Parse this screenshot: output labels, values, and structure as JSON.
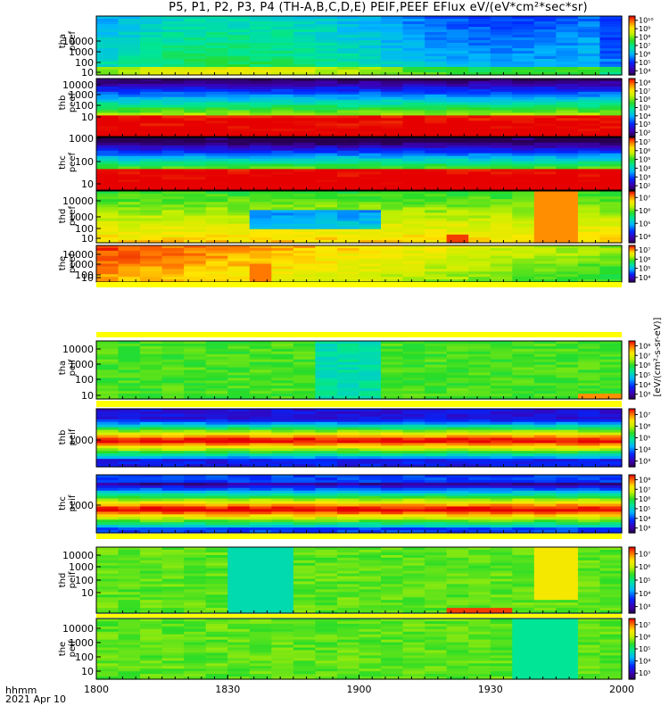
{
  "figure": {
    "title": "P5, P1, P2, P3, P4 (TH-A,B,C,D,E) PEIF,PEEF EFlux eV/(eV*cm²*sec*sr)",
    "time_axis_label": "hhmm",
    "date_label": "2021 Apr 10",
    "colorbar_unit_label": "[eV/(cm²-s-sr-eV)]"
  },
  "chart_data": [
    {
      "type": "heatmap",
      "panel": "tha peef",
      "ylabel": [
        "tha",
        "peef"
      ],
      "y_scale": "log",
      "ylim": [
        7,
        30000
      ],
      "yticks": [
        "10",
        "100",
        "1000",
        "10000"
      ],
      "x_range": [
        "1800",
        "2000"
      ],
      "xticks": [
        "1800",
        "1830",
        "1900",
        "1930",
        "2000"
      ],
      "colorbar_ticks": [
        "10⁴",
        "10⁵",
        "10⁶",
        "10⁷",
        "10⁸",
        "10⁹",
        "10¹⁰"
      ],
      "z_description": "energy flux, mostly 1e4-1e6 (blue-cyan) with green low-energy band",
      "colormap": "rainbow"
    },
    {
      "type": "heatmap",
      "panel": "thb peef",
      "ylabel": [
        "thb",
        "peef"
      ],
      "y_scale": "log",
      "ylim": [
        7,
        15000
      ],
      "yticks": [
        "10",
        "100",
        "1000",
        "10000"
      ],
      "colorbar_ticks": [
        "10²",
        "10³",
        "10⁴",
        "10⁵",
        "10⁶",
        "10⁷",
        "10⁸"
      ],
      "z_description": "horizontal bands: red near 10 eV fading to blue above 1 keV",
      "colormap": "rainbow"
    },
    {
      "type": "heatmap",
      "panel": "thc peef",
      "ylabel": [
        "thc",
        "peef"
      ],
      "y_scale": "log",
      "ylim": [
        7,
        4000
      ],
      "yticks": [
        "10",
        "100",
        "1000"
      ],
      "colorbar_ticks": [
        "10²",
        "10³",
        "10⁴",
        "10⁵",
        "10⁶",
        "10⁷"
      ],
      "z_description": "horizontal bands: red at low energy, blue/black above ~1 keV",
      "colormap": "rainbow"
    },
    {
      "type": "heatmap",
      "panel": "thd peef",
      "ylabel": [
        "thd",
        "peef"
      ],
      "y_scale": "log",
      "ylim": [
        7,
        30000
      ],
      "yticks": [
        "10",
        "100",
        "1000",
        "10000"
      ],
      "colorbar_ticks": [
        "10⁴",
        "10⁵",
        "10⁶",
        "10⁷"
      ],
      "z_description": "yellow-orange flux, cyan dip near 1845-1900, red low-energy near 1920-1930 and 1940-1950",
      "colormap": "rainbow"
    },
    {
      "type": "heatmap",
      "panel": "the peef",
      "ylabel": [
        "the",
        "peef"
      ],
      "y_scale": "log",
      "ylim": [
        7,
        30000
      ],
      "yticks": [
        "10",
        "100",
        "1000",
        "10000"
      ],
      "colorbar_ticks": [
        "10⁴",
        "10⁵",
        "10⁶",
        "10⁷"
      ],
      "z_description": "yellow-orange flux early, green-cyan later",
      "colormap": "rainbow"
    },
    {
      "type": "heatmap",
      "panel": "tha peif",
      "ylabel": [
        "tha",
        "peif"
      ],
      "y_scale": "log",
      "ylim": [
        5,
        30000
      ],
      "yticks": [
        "10",
        "100",
        "1000",
        "10000"
      ],
      "colorbar_ticks": [
        "10³",
        "10⁴",
        "10⁵",
        "10⁶",
        "10⁷",
        "10⁸"
      ],
      "z_description": "mostly green, cyan column near 1855-1905, orange low-energy at end",
      "colormap": "rainbow"
    },
    {
      "type": "heatmap",
      "panel": "thb peif",
      "ylabel": [
        "thb",
        "peif"
      ],
      "y_scale": "log",
      "ylim": [
        100,
        10000
      ],
      "yticks": [
        "1000"
      ],
      "colorbar_ticks": [
        "10³",
        "10⁴",
        "10⁵",
        "10⁶",
        "10⁷"
      ],
      "z_description": "banded: red band slightly below 1 keV, blue above and below",
      "colormap": "rainbow"
    },
    {
      "type": "heatmap",
      "panel": "thc peif",
      "ylabel": [
        "thc",
        "peif"
      ],
      "y_scale": "log",
      "ylim": [
        100,
        10000
      ],
      "yticks": [
        "1000"
      ],
      "colorbar_ticks": [
        "10³",
        "10⁴",
        "10⁵",
        "10⁶",
        "10⁷",
        "10⁸"
      ],
      "z_description": "banded: red band near 700 eV, blue at bottom and top",
      "colormap": "rainbow"
    },
    {
      "type": "heatmap",
      "panel": "thd peif",
      "ylabel": [
        "thd",
        "peif"
      ],
      "y_scale": "log",
      "ylim": [
        7,
        30000
      ],
      "yticks": [
        "10",
        "100",
        "1000",
        "10000"
      ],
      "colorbar_ticks": [
        "10³",
        "10⁴",
        "10⁵",
        "10⁶",
        "10⁷"
      ],
      "z_description": "green, cyan column near 1830-1845, yellow block near 1945-1955",
      "colormap": "rainbow"
    },
    {
      "type": "heatmap",
      "panel": "the peif",
      "ylabel": [
        "the",
        "peif"
      ],
      "y_scale": "log",
      "ylim": [
        7,
        30000
      ],
      "yticks": [
        "10",
        "100",
        "1000",
        "10000"
      ],
      "colorbar_ticks": [
        "10³",
        "10⁴",
        "10⁵",
        "10⁶",
        "10⁷"
      ],
      "z_description": "mostly green, cyan near 1935-1955",
      "colormap": "rainbow"
    }
  ]
}
